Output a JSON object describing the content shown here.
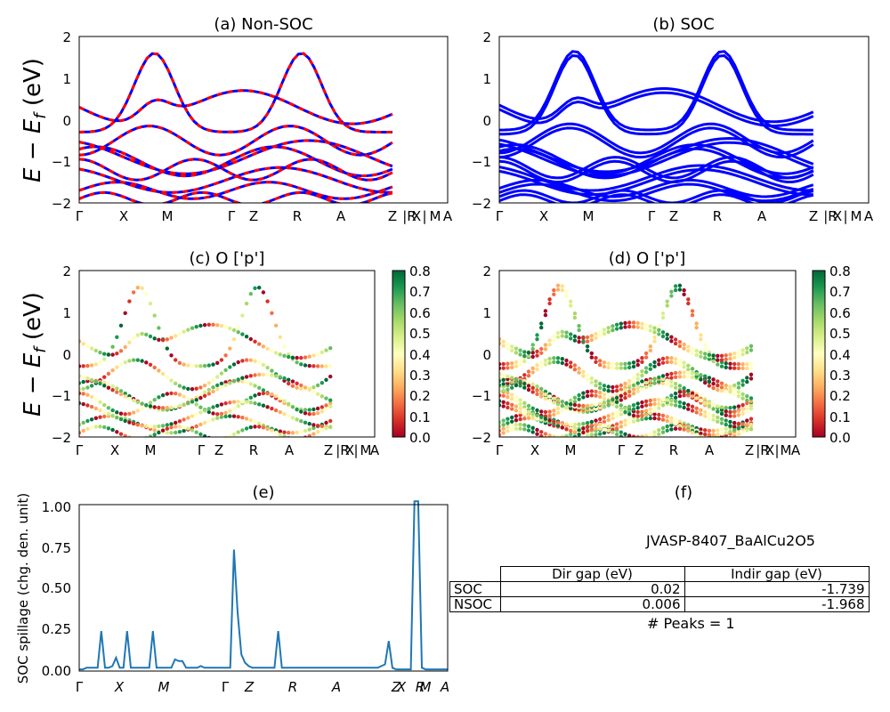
{
  "panels": [
    {
      "id": "a",
      "title": "(a) Non-SOC",
      "ylabel": "E − E_f (eV)",
      "ylim": [
        -2,
        2
      ],
      "yticks": [
        "2",
        "1",
        "0",
        "−1",
        "−2"
      ],
      "kticks": [
        "Γ",
        "X",
        "M",
        "Γ",
        "Z",
        "R",
        "A",
        "Z",
        "|R",
        "X",
        "|",
        "M",
        "A"
      ]
    },
    {
      "id": "b",
      "title": "(b) SOC",
      "ylim": [
        -2,
        2
      ],
      "yticks": [
        "2",
        "1",
        "0",
        "−1",
        "−2"
      ],
      "kticks": [
        "Γ",
        "X",
        "M",
        "Γ",
        "Z",
        "R",
        "A",
        "Z",
        "|R",
        "X",
        "|",
        "M",
        "A"
      ]
    },
    {
      "id": "c",
      "title": "(c)  O ['p']",
      "ylabel": "E − E_f (eV)",
      "ylim": [
        -2,
        2
      ],
      "yticks": [
        "2",
        "1",
        "0",
        "−1",
        "−2"
      ],
      "kticks": [
        "Γ",
        "X",
        "M",
        "Γ",
        "Z",
        "R",
        "A",
        "Z",
        "|R",
        "X",
        "|",
        "M",
        "A"
      ]
    },
    {
      "id": "d",
      "title": "(d) O ['p']",
      "ylim": [
        -2,
        2
      ],
      "yticks": [
        "2",
        "1",
        "0",
        "−1",
        "−2"
      ],
      "kticks": [
        "Γ",
        "X",
        "M",
        "Γ",
        "Z",
        "R",
        "A",
        "Z",
        "|R",
        "X",
        "|",
        "M",
        "A"
      ]
    }
  ],
  "colorbar": {
    "ticks": [
      "0.8",
      "0.7",
      "0.6",
      "0.5",
      "0.4",
      "0.3",
      "0.2",
      "0.1",
      "0.0"
    ],
    "colormap": "RdYlGn"
  },
  "chart_data": [
    {
      "type": "line",
      "title": "(e)",
      "ylabel": "SOC spillage (chg. den. unit)",
      "ylim": [
        0,
        1.0
      ],
      "yticks": [
        "1.00",
        "0.75",
        "0.50",
        "0.25",
        "0.00"
      ],
      "xticks": [
        "Γ",
        "X",
        "M",
        "Γ",
        "Z",
        "R",
        "A",
        "Z",
        "X",
        "R",
        "M",
        "A"
      ],
      "series": [
        {
          "color": "#1f77b4",
          "values": [
            0.01,
            0.01,
            0.02,
            0.02,
            0.02,
            0.02,
            0.24,
            0.02,
            0.02,
            0.03,
            0.08,
            0.02,
            0.02,
            0.24,
            0.02,
            0.02,
            0.02,
            0.02,
            0.02,
            0.02,
            0.24,
            0.02,
            0.02,
            0.02,
            0.02,
            0.02,
            0.07,
            0.06,
            0.06,
            0.02,
            0.02,
            0.02,
            0.02,
            0.03,
            0.02,
            0.02,
            0.02,
            0.02,
            0.02,
            0.02,
            0.02,
            0.02,
            0.73,
            0.35,
            0.1,
            0.05,
            0.03,
            0.02,
            0.02,
            0.02,
            0.02,
            0.02,
            0.02,
            0.02,
            0.24,
            0.02,
            0.02,
            0.02,
            0.02,
            0.02,
            0.02,
            0.02,
            0.02,
            0.02,
            0.02,
            0.02,
            0.02,
            0.02,
            0.02,
            0.02,
            0.02,
            0.02,
            0.02,
            0.02,
            0.02,
            0.02,
            0.02,
            0.02,
            0.02,
            0.02,
            0.02,
            0.02,
            0.03,
            0.04,
            0.18,
            0.02,
            0.01,
            0.01,
            0.01,
            0.01,
            0.01,
            1.02,
            1.02,
            0.02,
            0.01,
            0.01,
            0.01,
            0.01,
            0.01,
            0.01,
            0.01
          ]
        }
      ]
    },
    {
      "type": "table",
      "title": "(f)",
      "material": "JVASP-8407_BaAlCu2O5",
      "columns": [
        "",
        "Dir gap (eV)",
        "Indir gap (eV)"
      ],
      "rows": [
        [
          "SOC",
          "0.02",
          "-1.739"
        ],
        [
          "NSOC",
          "0.006",
          "-1.968"
        ]
      ],
      "peaks": "# Peaks = 1"
    }
  ]
}
